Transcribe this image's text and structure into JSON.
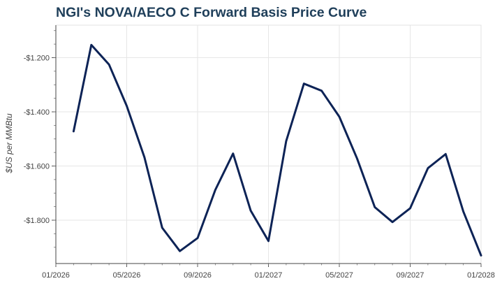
{
  "chart_data": {
    "type": "line",
    "title": "NGI's NOVA/AECO C Forward Basis Price Curve",
    "xlabel": "",
    "ylabel": "$US per MMBtu",
    "ylim": [
      -1.96,
      -1.08
    ],
    "grid": true,
    "line_color": "#0d2356",
    "x_ticks": [
      "01/2026",
      "05/2026",
      "09/2026",
      "01/2027",
      "05/2027",
      "09/2027",
      "01/2028"
    ],
    "y_ticks": [
      -1.2,
      -1.4,
      -1.6,
      -1.8
    ],
    "y_tick_labels": [
      "-$1.200",
      "-$1.400",
      "-$1.600",
      "-$1.800"
    ],
    "series": [
      {
        "name": "NOVA/AECO C Forward Basis",
        "x": [
          "2026-02",
          "2026-03",
          "2026-04",
          "2026-05",
          "2026-06",
          "2026-07",
          "2026-08",
          "2026-09",
          "2026-10",
          "2026-11",
          "2026-12",
          "2027-01",
          "2027-02",
          "2027-03",
          "2027-04",
          "2027-05",
          "2027-06",
          "2027-07",
          "2027-08",
          "2027-09",
          "2027-10",
          "2027-11",
          "2027-12",
          "2028-01"
        ],
        "values": [
          -1.472,
          -1.153,
          -1.225,
          -1.378,
          -1.568,
          -1.828,
          -1.914,
          -1.866,
          -1.688,
          -1.554,
          -1.765,
          -1.877,
          -1.508,
          -1.296,
          -1.322,
          -1.418,
          -1.572,
          -1.752,
          -1.807,
          -1.756,
          -1.608,
          -1.556,
          -1.768,
          -1.93
        ]
      }
    ]
  }
}
